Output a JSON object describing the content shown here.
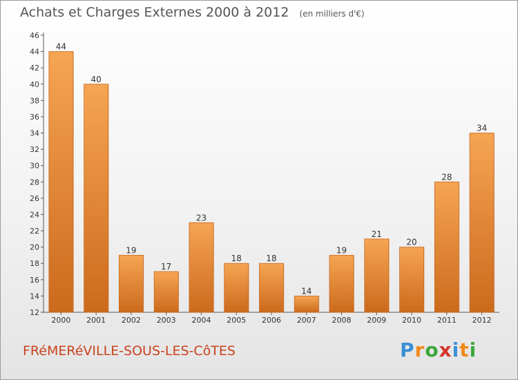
{
  "chart_data": {
    "type": "bar",
    "title": "Achats et Charges Externes 2000 à 2012",
    "subtitle": "(en milliers d'€)",
    "categories": [
      "2000",
      "2001",
      "2002",
      "2003",
      "2004",
      "2005",
      "2006",
      "2007",
      "2008",
      "2009",
      "2010",
      "2011",
      "2012"
    ],
    "values": [
      44,
      40,
      19,
      17,
      23,
      18,
      18,
      14,
      19,
      21,
      20,
      28,
      34
    ],
    "ylim": [
      12,
      46
    ],
    "ytick_step": 2,
    "grid": false,
    "bar_color_top": "#f5a553",
    "bar_color_bottom": "#cc6a1c"
  },
  "footer": {
    "place": "FRéMERéVILLE-SOUS-LES-CôTES"
  },
  "logo": {
    "text": "Proxiti",
    "letters": [
      "P",
      "r",
      "o",
      "x",
      "i",
      "t",
      "i"
    ],
    "colors": [
      "#3a8fd6",
      "#f08a1c",
      "#3aa63a",
      "#d6342a",
      "#3a8fd6",
      "#f08a1c",
      "#3aa63a"
    ]
  }
}
